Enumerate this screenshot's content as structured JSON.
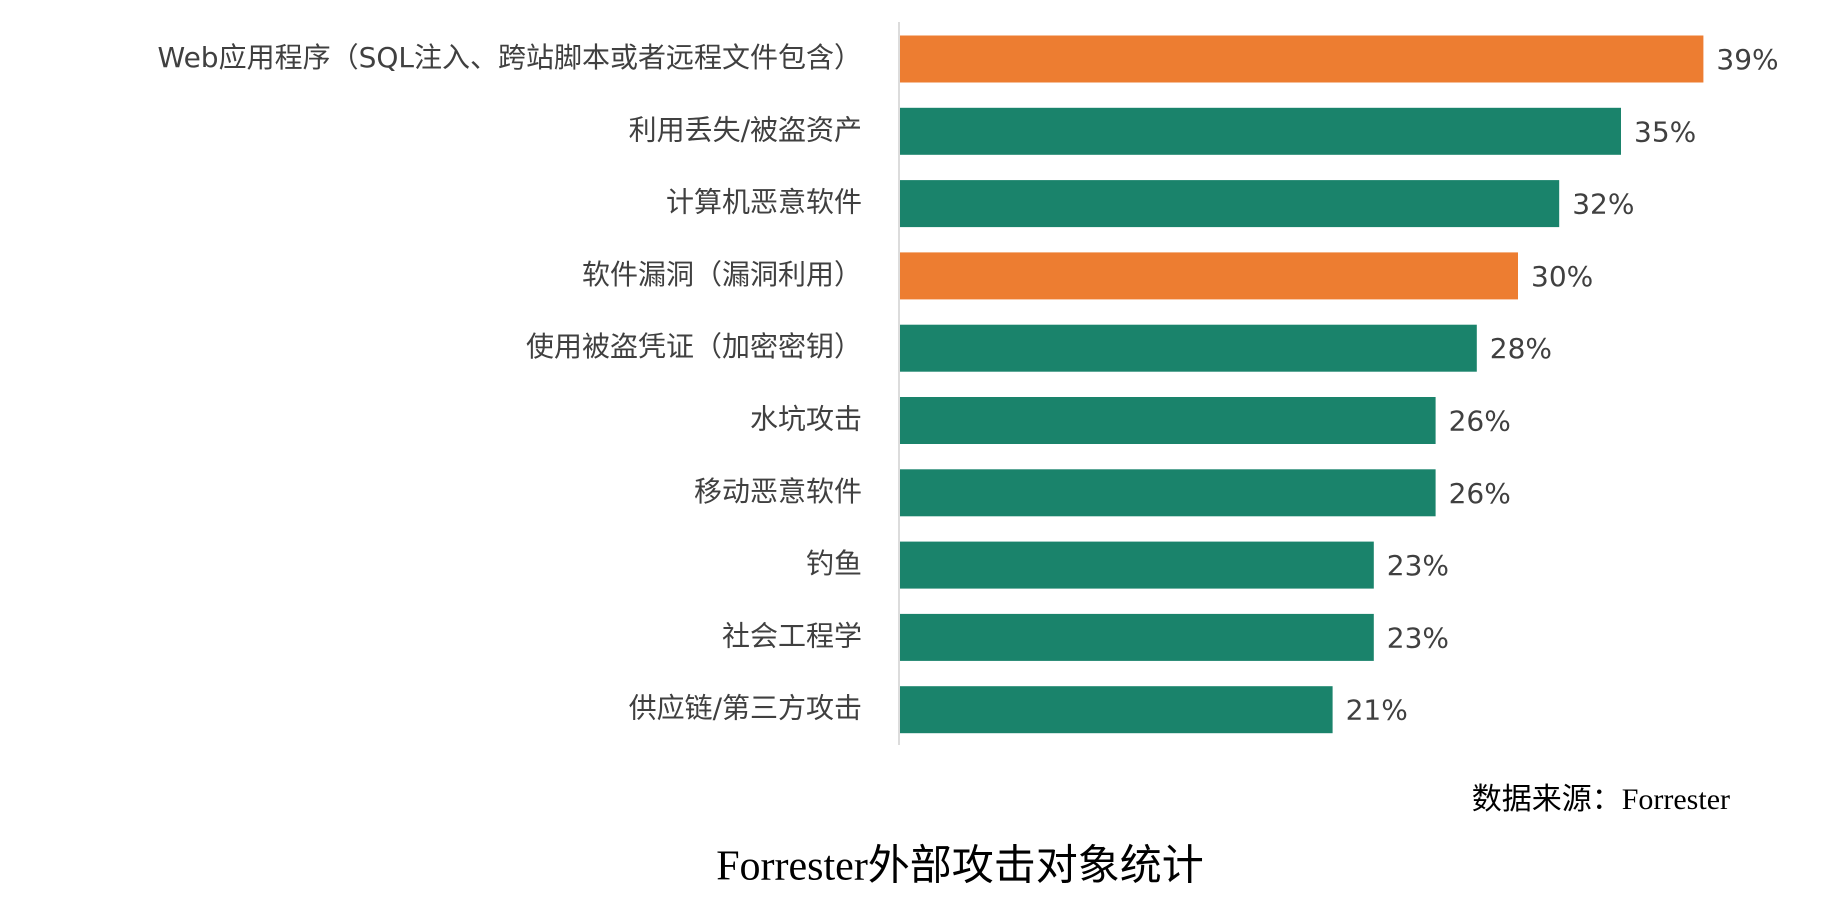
{
  "chart_data": {
    "type": "bar",
    "orientation": "horizontal",
    "title": "Forrester外部攻击对象统计",
    "source": "数据来源：Forrester",
    "categories": [
      "Web应用程序（SQL注入、跨站脚本或者远程文件包含）",
      "利用丢失/被盗资产",
      "计算机恶意软件",
      "软件漏洞（漏洞利用）",
      "使用被盗凭证（加密密钥）",
      "水坑攻击",
      "移动恶意软件",
      "钓鱼",
      "社会工程学",
      "供应链/第三方攻击"
    ],
    "values": [
      39,
      35,
      32,
      30,
      28,
      26,
      26,
      23,
      23,
      21
    ],
    "value_labels": [
      "39%",
      "35%",
      "32%",
      "30%",
      "28%",
      "26%",
      "26%",
      "23%",
      "23%",
      "21%"
    ],
    "colors": [
      "#ED7D31",
      "#1A836B",
      "#1A836B",
      "#ED7D31",
      "#1A836B",
      "#1A836B",
      "#1A836B",
      "#1A836B",
      "#1A836B",
      "#1A836B"
    ]
  }
}
